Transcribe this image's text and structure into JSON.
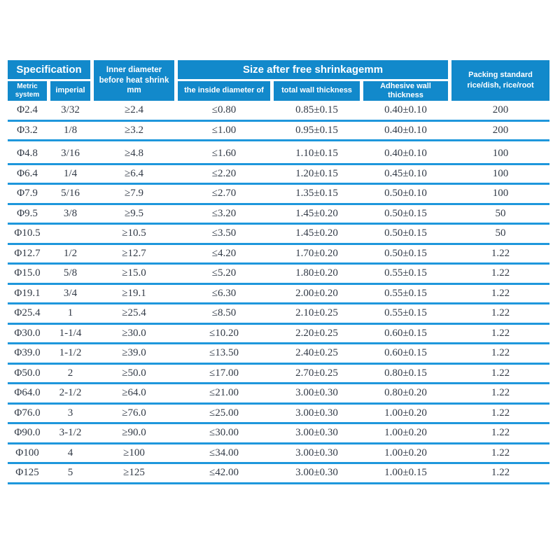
{
  "colors": {
    "header_blue": "#1289cb",
    "line_blue": "#1e97dc",
    "text_dark": "#323a46"
  },
  "table": {
    "header": {
      "specification": "Specification",
      "metric_system": "Metric system",
      "imperial": "imperial",
      "inner_diameter": "Inner diameter before heat shrink mm",
      "size_after_shrinkage": "Size after free shrinkagemm",
      "inside_diameter": "the inside diameter of",
      "total_wall_thickness": "total wall thickness",
      "adhesive_wall_thickness": "Adhesive wall thickness",
      "packing_line1": "Packing standard",
      "packing_line2": "rice/dish, rice/root"
    },
    "rows": [
      [
        "Φ2.4",
        "3/32",
        "≥2.4",
        "≤0.80",
        "0.85±0.15",
        "0.40±0.10",
        "200"
      ],
      [
        "Φ3.2",
        "1/8",
        "≥3.2",
        "≤1.00",
        "0.95±0.15",
        "0.40±0.10",
        "200"
      ],
      [
        "Φ4.8",
        "3/16",
        "≥4.8",
        "≤1.60",
        "1.10±0.15",
        "0.40±0.10",
        "100"
      ],
      [
        "Φ6.4",
        "1/4",
        "≥6.4",
        "≤2.20",
        "1.20±0.15",
        "0.45±0.10",
        "100"
      ],
      [
        "Φ7.9",
        "5/16",
        "≥7.9",
        "≤2.70",
        "1.35±0.15",
        "0.50±0.10",
        "100"
      ],
      [
        "Φ9.5",
        "3/8",
        "≥9.5",
        "≤3.20",
        "1.45±0.20",
        "0.50±0.15",
        "50"
      ],
      [
        "Φ10.5",
        "",
        "≥10.5",
        "≤3.50",
        "1.45±0.20",
        "0.50±0.15",
        "50"
      ],
      [
        "Φ12.7",
        "1/2",
        "≥12.7",
        "≤4.20",
        "1.70±0.20",
        "0.50±0.15",
        "1.22"
      ],
      [
        "Φ15.0",
        "5/8",
        "≥15.0",
        "≤5.20",
        "1.80±0.20",
        "0.55±0.15",
        "1.22"
      ],
      [
        "Φ19.1",
        "3/4",
        "≥19.1",
        "≤6.30",
        "2.00±0.20",
        "0.55±0.15",
        "1.22"
      ],
      [
        "Φ25.4",
        "1",
        "≥25.4",
        "≤8.50",
        "2.10±0.25",
        "0.55±0.15",
        "1.22"
      ],
      [
        "Φ30.0",
        "1-1/4",
        "≥30.0",
        "≤10.20",
        "2.20±0.25",
        "0.60±0.15",
        "1.22"
      ],
      [
        "Φ39.0",
        "1-1/2",
        "≥39.0",
        "≤13.50",
        "2.40±0.25",
        "0.60±0.15",
        "1.22"
      ],
      [
        "Φ50.0",
        "2",
        "≥50.0",
        "≤17.00",
        "2.70±0.25",
        "0.80±0.15",
        "1.22"
      ],
      [
        "Φ64.0",
        "2-1/2",
        "≥64.0",
        "≤21.00",
        "3.00±0.30",
        "0.80±0.20",
        "1.22"
      ],
      [
        "Φ76.0",
        "3",
        "≥76.0",
        "≤25.00",
        "3.00±0.30",
        "1.00±0.20",
        "1.22"
      ],
      [
        "Φ90.0",
        "3-1/2",
        "≥90.0",
        "≤30.00",
        "3.00±0.30",
        "1.00±0.20",
        "1.22"
      ],
      [
        "Φ100",
        "4",
        "≥100",
        "≤34.00",
        "3.00±0.30",
        "1.00±0.20",
        "1.22"
      ],
      [
        "Φ125",
        "5",
        "≥125",
        "≤42.00",
        "3.00±0.30",
        "1.00±0.15",
        "1.22"
      ]
    ]
  }
}
